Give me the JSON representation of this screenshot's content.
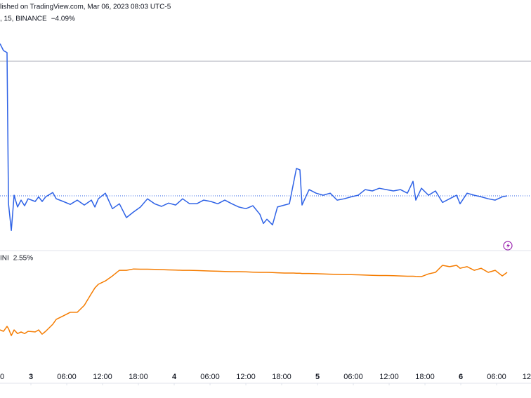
{
  "chart_data": {
    "type": "line",
    "title": "lished on TradingView.com, Mar 06, 2023 08:03 UTC-5",
    "x": [
      -5.18,
      -4.59,
      -4.0,
      -3.76,
      -3.29,
      -2.82,
      -2.24,
      -1.65,
      -1.06,
      -0.47,
      0.71,
      1.29,
      1.88,
      2.47,
      3.65,
      4.24,
      5.41,
      6.59,
      7.76,
      8.94,
      10.12,
      10.71,
      11.29,
      12.47,
      13.65,
      14.82,
      16.0,
      17.18,
      18.35,
      19.53,
      20.71,
      21.88,
      23.06,
      24.24,
      25.41,
      26.59,
      27.76,
      28.94,
      30.12,
      31.29,
      32.47,
      33.65,
      34.82,
      36.0,
      37.18,
      38.35,
      38.94,
      39.53,
      40.47,
      41.29,
      42.47,
      43.29,
      44.0,
      44.47,
      45.06,
      45.41,
      46.59,
      47.76,
      48.94,
      50.12,
      51.29,
      52.47,
      53.65,
      54.82,
      56.0,
      57.18,
      58.35,
      59.53,
      60.71,
      61.88,
      63.06,
      64.0,
      64.47,
      65.41,
      66.59,
      67.76,
      68.94,
      70.12,
      71.29,
      71.88,
      73.06,
      74.24,
      75.41,
      76.59,
      77.76,
      78.94,
      79.76
    ],
    "series": [
      {
        "name": ", 15, BINANCE",
        "last_label": "−4.09%",
        "color": "#2e62e6",
        "values": [
          0.53,
          0.32,
          0.26,
          -4.33,
          -5.14,
          -4.07,
          -4.43,
          -4.22,
          -4.39,
          -4.18,
          -4.26,
          -4.12,
          -4.26,
          -4.12,
          -3.99,
          -4.18,
          -4.26,
          -4.35,
          -4.22,
          -4.37,
          -4.22,
          -4.43,
          -4.18,
          -4.01,
          -4.48,
          -4.33,
          -4.75,
          -4.58,
          -4.43,
          -4.18,
          -4.33,
          -4.41,
          -4.31,
          -4.37,
          -4.18,
          -4.33,
          -4.33,
          -4.22,
          -4.26,
          -4.33,
          -4.22,
          -4.33,
          -4.43,
          -4.48,
          -4.39,
          -4.65,
          -4.93,
          -4.8,
          -4.97,
          -4.43,
          -4.37,
          -4.33,
          -3.69,
          -3.26,
          -3.3,
          -4.37,
          -3.9,
          -4.01,
          -4.07,
          -4.01,
          -4.22,
          -4.18,
          -4.12,
          -4.07,
          -3.9,
          -3.94,
          -3.86,
          -3.9,
          -3.94,
          -3.9,
          -4.01,
          -3.65,
          -4.22,
          -3.86,
          -4.07,
          -3.94,
          -4.29,
          -4.18,
          -4.07,
          -4.33,
          -4.01,
          -4.07,
          -4.12,
          -4.18,
          -4.22,
          -4.12,
          -4.09
        ]
      },
      {
        "name": "INI",
        "last_label": "2.55%",
        "color": "#f57c00",
        "axis": "y2",
        "values": [
          0,
          -0.06,
          0.16,
          0.06,
          -0.25,
          0,
          -0.16,
          -0.09,
          -0.16,
          -0.06,
          -0.09,
          0,
          -0.19,
          -0.06,
          0.25,
          0.47,
          0.62,
          0.78,
          0.78,
          1.09,
          1.61,
          1.86,
          2.02,
          2.17,
          2.39,
          2.64,
          2.64,
          2.7,
          2.69,
          2.69,
          2.68,
          2.67,
          2.66,
          2.65,
          2.64,
          2.64,
          2.63,
          2.62,
          2.61,
          2.6,
          2.59,
          2.58,
          2.58,
          2.57,
          2.56,
          2.55,
          2.55,
          2.55,
          2.54,
          2.53,
          2.52,
          2.52,
          2.52,
          2.51,
          2.51,
          2.5,
          2.5,
          2.49,
          2.48,
          2.47,
          2.46,
          2.45,
          2.45,
          2.44,
          2.43,
          2.42,
          2.41,
          2.41,
          2.4,
          2.39,
          2.38,
          2.38,
          2.37,
          2.36,
          2.48,
          2.55,
          2.86,
          2.8,
          2.86,
          2.73,
          2.8,
          2.64,
          2.73,
          2.55,
          2.64,
          2.39,
          2.55
        ]
      }
    ],
    "xlim": [
      -5.18,
      83.76
    ],
    "xticks": [
      {
        "value": -6,
        "label": "0"
      },
      {
        "value": 0,
        "label": "3"
      },
      {
        "value": 6,
        "label": "06:00"
      },
      {
        "value": 12,
        "label": "12:00"
      },
      {
        "value": 18,
        "label": "18:00"
      },
      {
        "value": 24,
        "label": "4"
      },
      {
        "value": 30,
        "label": "06:00"
      },
      {
        "value": 36,
        "label": "12:00"
      },
      {
        "value": 42,
        "label": "18:00"
      },
      {
        "value": 48,
        "label": "5"
      },
      {
        "value": 54,
        "label": "06:00"
      },
      {
        "value": 60,
        "label": "12:00"
      },
      {
        "value": 66,
        "label": "18:00"
      },
      {
        "value": 72,
        "label": "6"
      },
      {
        "value": 78,
        "label": "06:00"
      },
      {
        "value": 84,
        "label": "12"
      }
    ],
    "ylim": [
      -5.71,
      1.43
    ],
    "y2lim": [
      -2.33,
      3.42
    ]
  }
}
